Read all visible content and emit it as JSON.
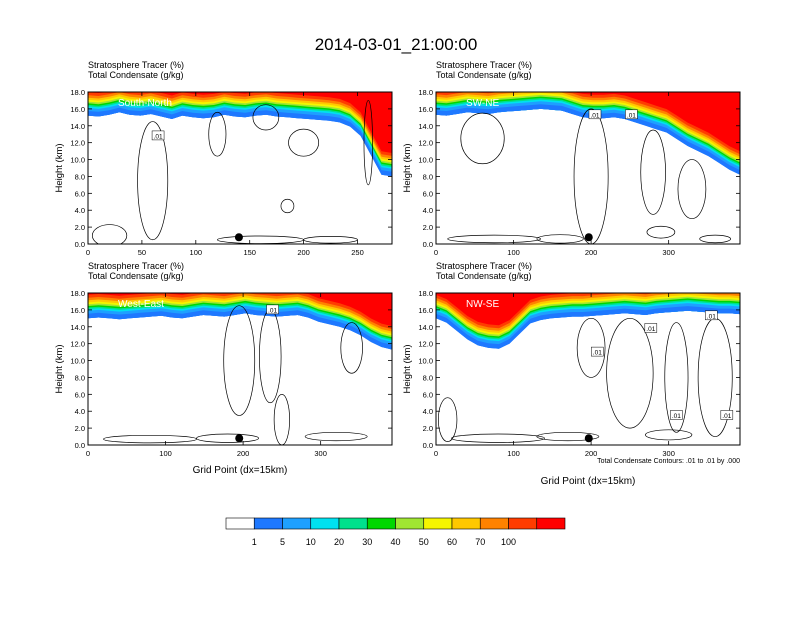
{
  "title": "2014-03-01_21:00:00",
  "colors": {
    "background": "#ffffff",
    "axis": "#000000",
    "contour": "#000000",
    "marker": "#000000"
  },
  "colorbar": {
    "labels": [
      "1",
      "5",
      "10",
      "20",
      "30",
      "40",
      "50",
      "60",
      "70",
      "100"
    ],
    "colors": [
      "#ffffff",
      "#1e78ff",
      "#1ea0ff",
      "#00e1f0",
      "#00e18c",
      "#00d700",
      "#a0e632",
      "#f5f500",
      "#ffc800",
      "#ff8200",
      "#ff3c00",
      "#ff0000"
    ]
  },
  "contour_note": "Total Condensate Contours: .01 to .01 by .000",
  "chart_data": [
    {
      "type": "heatmap",
      "panel": "top-left",
      "label": "South-North",
      "subtitle": [
        "Stratosphere Tracer   (%)",
        "Total Condensate   (g/kg)"
      ],
      "ylabel": "Height (km)",
      "xlabel": "",
      "yticks": [
        "0.0",
        "2.0",
        "4.0",
        "6.0",
        "8.0",
        "10.0",
        "12.0",
        "14.0",
        "16.0",
        "18.0"
      ],
      "ylim": [
        0,
        18
      ],
      "xticks": [
        0,
        50,
        100,
        150,
        200,
        250
      ],
      "xlim": [
        0,
        282
      ],
      "marker_x": 140,
      "contour_labels": [
        {
          "text": ".01",
          "x": 65,
          "y": 12.8
        }
      ],
      "tracer_base_km": [
        15.2,
        15.1,
        15.3,
        15.6,
        15.3,
        15.2,
        15.4,
        15.1,
        14.8,
        15.2,
        15.0,
        14.9,
        15.0,
        15.3,
        15.1,
        15.0,
        15.2,
        15.3,
        15.1,
        15.0,
        14.9,
        14.8,
        14.7,
        14.6,
        14.4,
        13.9,
        12.8,
        10.5,
        8.2,
        8.0
      ],
      "clouds": [
        {
          "cx": 20,
          "cy": 1.0,
          "rx": 16,
          "ry": 1.3
        },
        {
          "cx": 60,
          "cy": 7.5,
          "rx": 14,
          "ry": 7.0
        },
        {
          "cx": 120,
          "cy": 13.0,
          "rx": 8,
          "ry": 2.6
        },
        {
          "cx": 165,
          "cy": 15.0,
          "rx": 12,
          "ry": 1.5
        },
        {
          "cx": 200,
          "cy": 12.0,
          "rx": 14,
          "ry": 1.6
        },
        {
          "cx": 185,
          "cy": 4.5,
          "rx": 6,
          "ry": 0.8
        },
        {
          "cx": 160,
          "cy": 0.5,
          "rx": 40,
          "ry": 0.45
        },
        {
          "cx": 225,
          "cy": 0.5,
          "rx": 25,
          "ry": 0.4
        },
        {
          "cx": 260,
          "cy": 12.0,
          "rx": 4,
          "ry": 5.0
        }
      ]
    },
    {
      "type": "heatmap",
      "panel": "top-right",
      "label": "SW-NE",
      "subtitle": [
        "Stratosphere Tracer   (%)",
        "Total Condensate   (g/kg)"
      ],
      "ylabel": "Height (km)",
      "xlabel": "",
      "yticks": [
        "0.0",
        "2.0",
        "4.0",
        "6.0",
        "8.0",
        "10.0",
        "12.0",
        "14.0",
        "16.0",
        "18.0"
      ],
      "ylim": [
        0,
        18
      ],
      "xticks": [
        0,
        100,
        200,
        300
      ],
      "xlim": [
        0,
        392
      ],
      "marker_x": 197,
      "contour_labels": [
        {
          "text": ".01",
          "x": 205,
          "y": 15.3
        },
        {
          "text": ".01",
          "x": 252,
          "y": 15.3
        }
      ],
      "tracer_base_km": [
        15.3,
        15.2,
        15.4,
        15.6,
        15.5,
        15.4,
        15.6,
        15.7,
        15.8,
        15.9,
        16.0,
        15.9,
        15.8,
        15.4,
        15.0,
        14.9,
        14.9,
        15.0,
        14.8,
        14.4,
        14.0,
        13.6,
        13.2,
        12.4,
        11.6,
        11.0,
        10.4,
        9.6,
        8.8,
        8.2
      ],
      "clouds": [
        {
          "cx": 60,
          "cy": 12.5,
          "rx": 28,
          "ry": 3.0
        },
        {
          "cx": 200,
          "cy": 8.0,
          "rx": 22,
          "ry": 8.0
        },
        {
          "cx": 280,
          "cy": 8.5,
          "rx": 16,
          "ry": 5.0
        },
        {
          "cx": 330,
          "cy": 6.5,
          "rx": 18,
          "ry": 3.5
        },
        {
          "cx": 75,
          "cy": 0.6,
          "rx": 60,
          "ry": 0.45
        },
        {
          "cx": 160,
          "cy": 0.6,
          "rx": 30,
          "ry": 0.5
        },
        {
          "cx": 290,
          "cy": 1.4,
          "rx": 18,
          "ry": 0.7
        },
        {
          "cx": 360,
          "cy": 0.6,
          "rx": 20,
          "ry": 0.45
        }
      ]
    },
    {
      "type": "heatmap",
      "panel": "bottom-left",
      "label": "West-East",
      "subtitle": [
        "Stratosphere Tracer   (%)",
        "Total Condensate   (g/kg)"
      ],
      "ylabel": "Height (km)",
      "xlabel": "Grid Point (dx=15km)",
      "yticks": [
        "0.0",
        "2.0",
        "4.0",
        "6.0",
        "8.0",
        "10.0",
        "12.0",
        "14.0",
        "16.0",
        "18.0"
      ],
      "ylim": [
        0,
        18
      ],
      "xticks": [
        0,
        100,
        200,
        300
      ],
      "xlim": [
        0,
        392
      ],
      "marker_x": 195,
      "contour_labels": [
        {
          "text": ".01",
          "x": 238,
          "y": 16.0
        }
      ],
      "tracer_base_km": [
        15.0,
        15.1,
        15.0,
        14.9,
        15.0,
        15.1,
        15.2,
        15.3,
        15.1,
        15.0,
        15.2,
        15.4,
        15.3,
        15.2,
        15.4,
        15.6,
        15.4,
        15.3,
        15.2,
        15.3,
        15.4,
        15.1,
        14.6,
        14.3,
        14.0,
        13.6,
        13.0,
        12.2,
        11.6,
        11.3
      ],
      "clouds": [
        {
          "cx": 195,
          "cy": 10.0,
          "rx": 20,
          "ry": 6.5
        },
        {
          "cx": 235,
          "cy": 10.5,
          "rx": 14,
          "ry": 5.5
        },
        {
          "cx": 340,
          "cy": 11.5,
          "rx": 14,
          "ry": 3.0
        },
        {
          "cx": 250,
          "cy": 3.0,
          "rx": 10,
          "ry": 3.0
        },
        {
          "cx": 80,
          "cy": 0.7,
          "rx": 60,
          "ry": 0.45
        },
        {
          "cx": 180,
          "cy": 0.8,
          "rx": 40,
          "ry": 0.5
        },
        {
          "cx": 320,
          "cy": 1.0,
          "rx": 40,
          "ry": 0.5
        }
      ]
    },
    {
      "type": "heatmap",
      "panel": "bottom-right",
      "label": "NW-SE",
      "subtitle": [
        "Stratosphere Tracer   (%)",
        "Total Condensate   (g/kg)"
      ],
      "ylabel": "Height (km)",
      "xlabel": "Grid Point (dx=15km)",
      "yticks": [
        "0.0",
        "2.0",
        "4.0",
        "6.0",
        "8.0",
        "10.0",
        "12.0",
        "14.0",
        "16.0",
        "18.0"
      ],
      "ylim": [
        0,
        18
      ],
      "xticks": [
        0,
        100,
        200,
        300
      ],
      "xlim": [
        0,
        392
      ],
      "marker_x": 197,
      "contour_labels": [
        {
          "text": ".01",
          "x": 277,
          "y": 13.8
        },
        {
          "text": ".01",
          "x": 208,
          "y": 11.0
        },
        {
          "text": ".01",
          "x": 355,
          "y": 15.3
        },
        {
          "text": ".01",
          "x": 310,
          "y": 3.5
        },
        {
          "text": ".01",
          "x": 375,
          "y": 3.5
        }
      ],
      "tracer_base_km": [
        15.0,
        14.5,
        13.5,
        12.5,
        11.8,
        11.5,
        11.4,
        12.0,
        13.2,
        14.4,
        14.8,
        15.0,
        15.1,
        15.2,
        15.2,
        15.3,
        15.4,
        15.5,
        15.6,
        15.5,
        15.4,
        15.6,
        15.7,
        15.8,
        15.9,
        15.8,
        15.7,
        15.6,
        15.6,
        15.5
      ],
      "clouds": [
        {
          "cx": 200,
          "cy": 11.5,
          "rx": 18,
          "ry": 3.5
        },
        {
          "cx": 250,
          "cy": 8.5,
          "rx": 30,
          "ry": 6.5
        },
        {
          "cx": 310,
          "cy": 8.0,
          "rx": 15,
          "ry": 6.5
        },
        {
          "cx": 360,
          "cy": 8.0,
          "rx": 22,
          "ry": 7.0
        },
        {
          "cx": 15,
          "cy": 3.0,
          "rx": 12,
          "ry": 2.6
        },
        {
          "cx": 80,
          "cy": 0.8,
          "rx": 60,
          "ry": 0.5
        },
        {
          "cx": 170,
          "cy": 1.0,
          "rx": 40,
          "ry": 0.5
        },
        {
          "cx": 300,
          "cy": 1.2,
          "rx": 30,
          "ry": 0.6
        }
      ]
    }
  ]
}
